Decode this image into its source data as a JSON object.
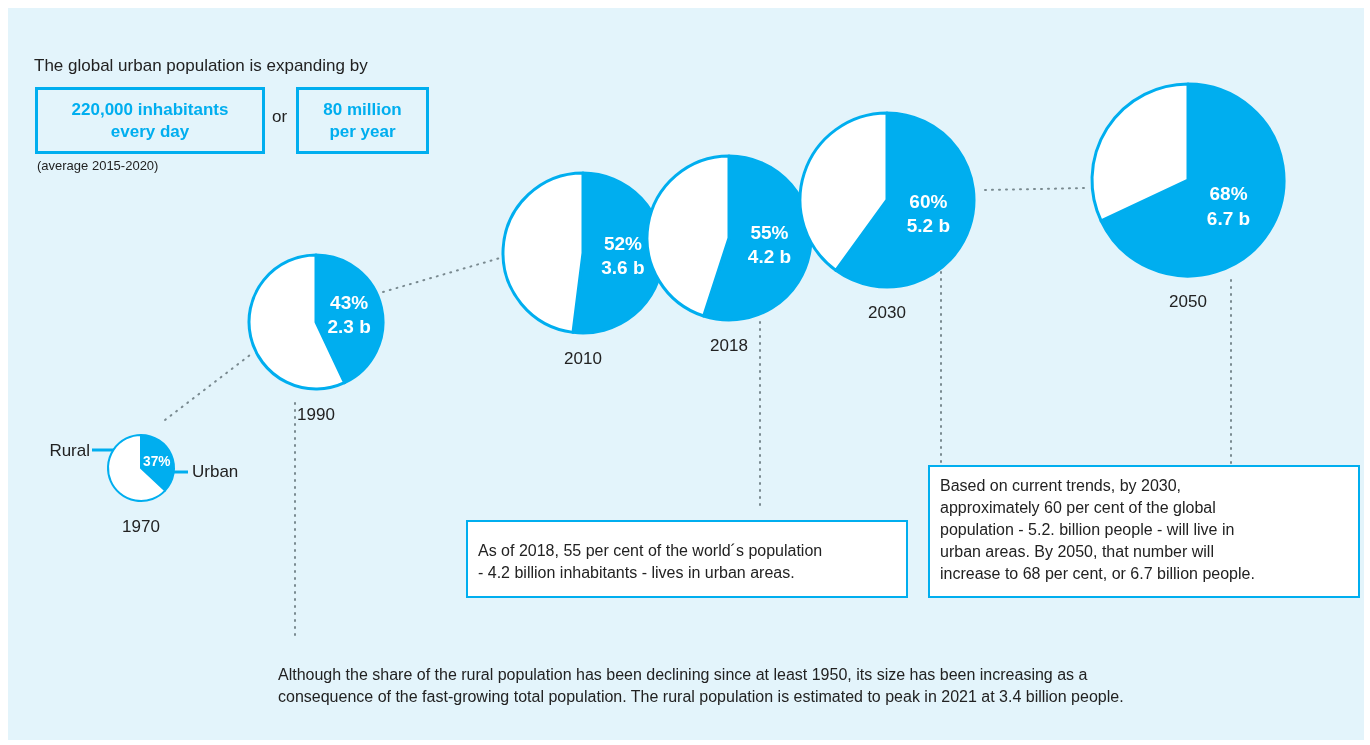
{
  "chart_data": [
    {
      "type": "pie",
      "title": "1970",
      "categories": [
        "Urban",
        "Rural"
      ],
      "values": [
        37,
        63
      ],
      "colors": [
        "#00aeef",
        "#ffffff"
      ],
      "value_labels": [
        "37%",
        null
      ]
    },
    {
      "type": "pie",
      "title": "1990",
      "categories": [
        null,
        null
      ],
      "values": [
        43,
        57
      ],
      "colors": [
        "#00aeef",
        "#ffffff"
      ],
      "value_labels": [
        "43%\n2.3 b",
        null
      ]
    },
    {
      "type": "pie",
      "title": "2010",
      "categories": [
        null,
        null
      ],
      "values": [
        52,
        48
      ],
      "colors": [
        "#00aeef",
        "#ffffff"
      ],
      "value_labels": [
        "52%\n3.6 b",
        null
      ]
    },
    {
      "type": "pie",
      "title": "2018",
      "categories": [
        null,
        null
      ],
      "values": [
        55,
        45
      ],
      "colors": [
        "#00aeef",
        "#ffffff"
      ],
      "value_labels": [
        "55%\n4.2 b",
        null
      ]
    },
    {
      "type": "pie",
      "title": "2030",
      "categories": [
        null,
        null
      ],
      "values": [
        60,
        40
      ],
      "colors": [
        "#00aeef",
        "#ffffff"
      ],
      "value_labels": [
        "60%\n5.2 b",
        null
      ]
    },
    {
      "type": "pie",
      "title": "2050",
      "categories": [
        null,
        null
      ],
      "values": [
        68,
        32
      ],
      "colors": [
        "#00aeef",
        "#ffffff"
      ],
      "value_labels": [
        "68%\n6.7 b",
        null
      ]
    },
    {
      "type": "other",
      "annotations": [
        "The global urban population is expanding by",
        "220,000 inhabitants\nevery day",
        "or",
        "80 million\nper year",
        "(average 2015-2020)",
        "As of 2018, 55 per cent of the world´s population\n- 4.2 billion inhabitants - lives in urban areas.",
        "Based on current trends, by 2030,\napproximately 60 per cent of the global\npopulation - 5.2. billion people - will live in\nurban areas. By 2050, that number will\nincrease to 68 per cent, or 6.7 billion people.",
        "Although the share of the rural population has been declining since at least 1950, its size has been increasing as a\nconsequence of the fast-growing total population. The rural population is estimated to peak in 2021 at 3.4 billion people."
      ]
    }
  ]
}
